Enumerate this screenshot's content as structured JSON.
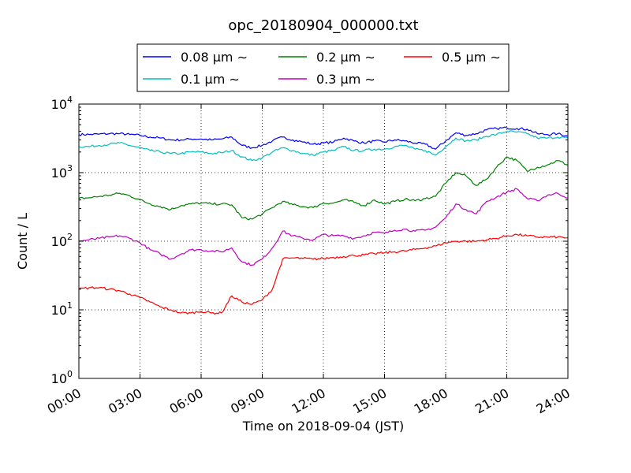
{
  "chart_data": {
    "type": "line",
    "title": "opc_20180904_000000.txt",
    "xlabel": "Time on 2018-09-04 (JST)",
    "ylabel": "Count / L",
    "y_scale": "log",
    "ylim": [
      1,
      10000
    ],
    "xlim": [
      "00:00",
      "24:00"
    ],
    "x_tick_labels": [
      "00:00",
      "03:00",
      "06:00",
      "09:00",
      "12:00",
      "15:00",
      "18:00",
      "21:00",
      "24:00"
    ],
    "y_tick_labels": [
      {
        "value": 1,
        "base": "10",
        "exp": "0"
      },
      {
        "value": 10,
        "base": "10",
        "exp": "1"
      },
      {
        "value": 100,
        "base": "10",
        "exp": "2"
      },
      {
        "value": 1000,
        "base": "10",
        "exp": "3"
      },
      {
        "value": 10000,
        "base": "10",
        "exp": "4"
      }
    ],
    "grid": true,
    "legend_position": "top-center, above plot",
    "x": [
      "00:00",
      "00:30",
      "01:00",
      "01:30",
      "02:00",
      "02:30",
      "03:00",
      "03:30",
      "04:00",
      "04:30",
      "05:00",
      "05:30",
      "06:00",
      "06:30",
      "07:00",
      "07:30",
      "08:00",
      "08:30",
      "09:00",
      "09:30",
      "10:00",
      "10:30",
      "11:00",
      "11:30",
      "12:00",
      "12:30",
      "13:00",
      "13:30",
      "14:00",
      "14:30",
      "15:00",
      "15:30",
      "16:00",
      "16:30",
      "17:00",
      "17:30",
      "18:00",
      "18:30",
      "19:00",
      "19:30",
      "20:00",
      "20:30",
      "21:00",
      "21:30",
      "22:00",
      "22:30",
      "23:00",
      "23:30",
      "24:00"
    ],
    "series": [
      {
        "name": "0.08 μm ∼",
        "color": "#0000ff",
        "values": [
          3600,
          3600,
          3650,
          3700,
          3700,
          3600,
          3500,
          3300,
          3200,
          3000,
          3000,
          3100,
          3100,
          3000,
          3100,
          3300,
          2500,
          2300,
          2500,
          2900,
          3300,
          3000,
          2800,
          2600,
          2700,
          2800,
          3200,
          2900,
          2700,
          2900,
          2800,
          3000,
          2900,
          2700,
          2600,
          2200,
          2900,
          3800,
          3500,
          3700,
          4200,
          4400,
          4500,
          4400,
          4300,
          3700,
          3600,
          3700,
          3400
        ]
      },
      {
        "name": "0.1 μm ∼",
        "color": "#00bfbf",
        "values": [
          2400,
          2400,
          2500,
          2600,
          2700,
          2500,
          2300,
          2100,
          2000,
          1900,
          1900,
          2000,
          2000,
          1900,
          1950,
          2100,
          1700,
          1500,
          1650,
          2000,
          2300,
          2100,
          1900,
          1800,
          2000,
          2100,
          2400,
          2100,
          2100,
          2200,
          2200,
          2400,
          2500,
          2200,
          2100,
          1800,
          2400,
          3200,
          2900,
          3000,
          3400,
          3600,
          4000,
          3900,
          3700,
          3200,
          3200,
          3300,
          3200
        ]
      },
      {
        "name": "0.2 μm ∼",
        "color": "#008000",
        "values": [
          420,
          430,
          450,
          470,
          500,
          460,
          400,
          350,
          320,
          290,
          330,
          350,
          360,
          350,
          350,
          340,
          220,
          210,
          250,
          310,
          380,
          340,
          320,
          310,
          360,
          360,
          400,
          370,
          330,
          400,
          350,
          380,
          410,
          390,
          420,
          450,
          700,
          1000,
          900,
          650,
          800,
          1200,
          1700,
          1500,
          1050,
          1200,
          1300,
          1500,
          1300
        ]
      },
      {
        "name": "0.3 μm ∼",
        "color": "#bf00bf",
        "values": [
          100,
          105,
          110,
          115,
          120,
          110,
          95,
          75,
          65,
          55,
          65,
          75,
          75,
          72,
          70,
          80,
          50,
          45,
          55,
          80,
          140,
          120,
          110,
          105,
          125,
          120,
          120,
          110,
          120,
          135,
          130,
          145,
          150,
          140,
          145,
          160,
          220,
          350,
          290,
          250,
          380,
          440,
          520,
          580,
          420,
          390,
          470,
          500,
          430
        ]
      },
      {
        "name": "0.5 μm ∼",
        "color": "#ff0000",
        "values": [
          20,
          21,
          21,
          20,
          19,
          17,
          15,
          13,
          11,
          10,
          9,
          9,
          9.5,
          9,
          9,
          16,
          13,
          12,
          14,
          20,
          55,
          57,
          56,
          55,
          56,
          58,
          60,
          62,
          63,
          66,
          68,
          70,
          72,
          76,
          80,
          85,
          95,
          100,
          100,
          100,
          105,
          110,
          120,
          125,
          120,
          115,
          115,
          115,
          112
        ]
      }
    ]
  }
}
